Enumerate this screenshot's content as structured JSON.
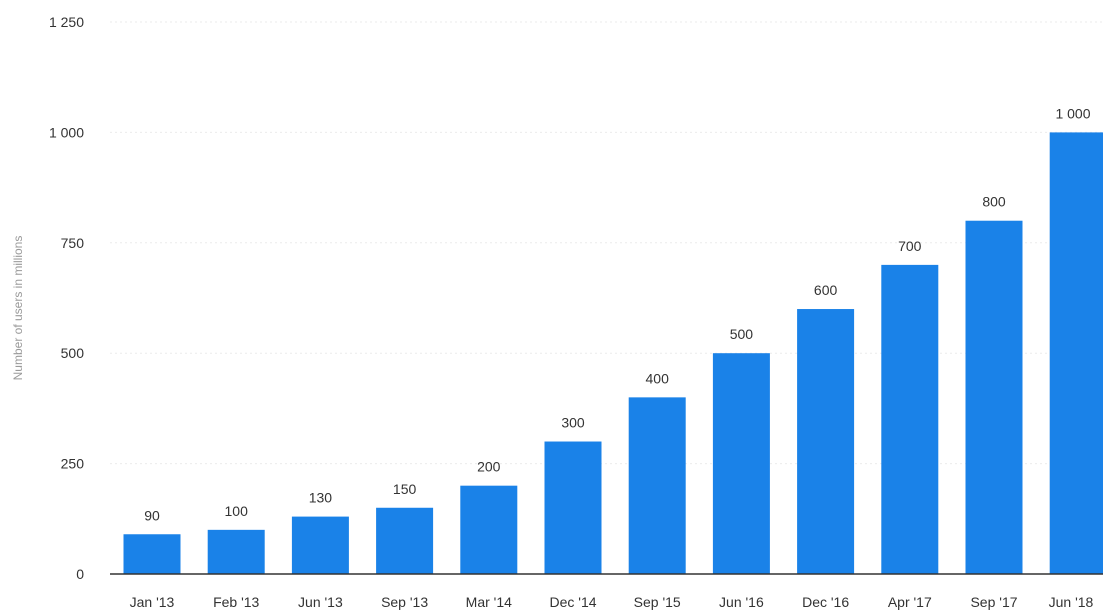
{
  "chart_data": {
    "type": "bar",
    "categories": [
      "Jan '13",
      "Feb '13",
      "Jun '13",
      "Sep '13",
      "Mar '14",
      "Dec '14",
      "Sep '15",
      "Jun '16",
      "Dec '16",
      "Apr '17",
      "Sep '17",
      "Jun '18"
    ],
    "values": [
      90,
      100,
      130,
      150,
      200,
      300,
      400,
      500,
      600,
      700,
      800,
      1000
    ],
    "value_labels": [
      "90",
      "100",
      "130",
      "150",
      "200",
      "300",
      "400",
      "500",
      "600",
      "700",
      "800",
      "1 000"
    ],
    "title": "",
    "xlabel": "",
    "ylabel": "Number of users in millions",
    "ylim": [
      0,
      1250
    ],
    "y_ticks": [
      0,
      250,
      500,
      750,
      1000,
      1250
    ],
    "y_tick_labels": [
      "0",
      "250",
      "500",
      "750",
      "1 000",
      "1 250"
    ],
    "grid": true,
    "legend": "none",
    "bar_color": "#1a82e8"
  }
}
